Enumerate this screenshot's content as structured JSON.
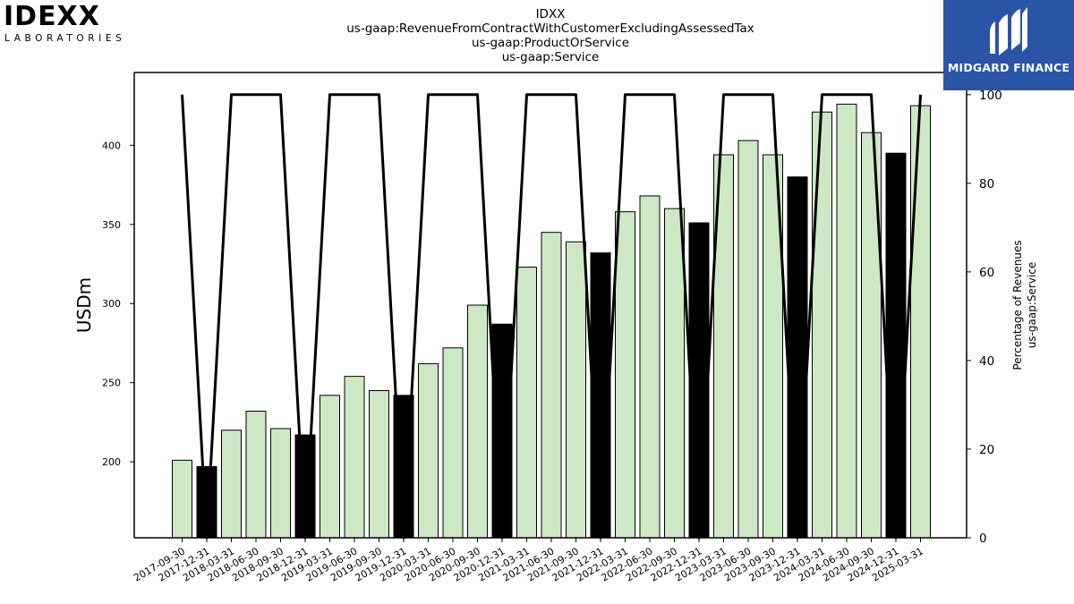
{
  "chart_data": {
    "type": "bar",
    "title_lines": [
      "IDXX",
      "us-gaap:RevenueFromContractWithCustomerExcludingAssessedTax",
      "us-gaap:ProductOrService",
      "us-gaap:Service"
    ],
    "ylabel": "USDm",
    "ylabel_right": [
      "Percentage of Revenues",
      "us-gaap:Service"
    ],
    "ylim": [
      152,
      446
    ],
    "yticks": [
      200,
      250,
      300,
      350,
      400
    ],
    "ylim_right": [
      0,
      105
    ],
    "yticks_right": [
      0,
      20,
      40,
      60,
      80,
      100
    ],
    "categories": [
      "2017-09-30",
      "2017-12-31",
      "2018-03-31",
      "2018-06-30",
      "2018-09-30",
      "2018-12-31",
      "2019-03-31",
      "2019-06-30",
      "2019-09-30",
      "2019-12-31",
      "2020-03-31",
      "2020-06-30",
      "2020-09-30",
      "2020-12-31",
      "2021-03-31",
      "2021-06-30",
      "2021-09-30",
      "2021-12-31",
      "2022-03-31",
      "2022-06-30",
      "2022-09-30",
      "2022-12-31",
      "2023-03-31",
      "2023-06-30",
      "2023-09-30",
      "2023-12-31",
      "2024-03-31",
      "2024-06-30",
      "2024-09-30",
      "2024-12-31",
      "2025-03-31"
    ],
    "series": [
      {
        "type": "bar",
        "values": [
          201,
          197,
          220,
          232,
          221,
          217,
          242,
          254,
          245,
          242,
          262,
          272,
          299,
          287,
          323,
          345,
          339,
          332,
          358,
          368,
          360,
          351,
          394,
          403,
          394,
          380,
          421,
          426,
          408,
          395,
          425
        ],
        "highlight_indices": [
          1,
          5,
          9,
          13,
          17,
          21,
          25,
          29
        ],
        "color": "#cde8c5",
        "highlight_color": "#000000"
      },
      {
        "type": "line",
        "axis": "right",
        "values": [
          100,
          0,
          100,
          100,
          100,
          0,
          100,
          100,
          100,
          0,
          100,
          100,
          100,
          0,
          100,
          100,
          100,
          0,
          100,
          100,
          100,
          0,
          100,
          100,
          100,
          0,
          100,
          100,
          100,
          0,
          100
        ],
        "color": "#000000"
      }
    ]
  },
  "logos": {
    "left_word": "IDEXX",
    "left_sub": "LABORATORIES",
    "right_text": "MIDGARD FINANCE",
    "right_bg": "#2a54a6"
  }
}
